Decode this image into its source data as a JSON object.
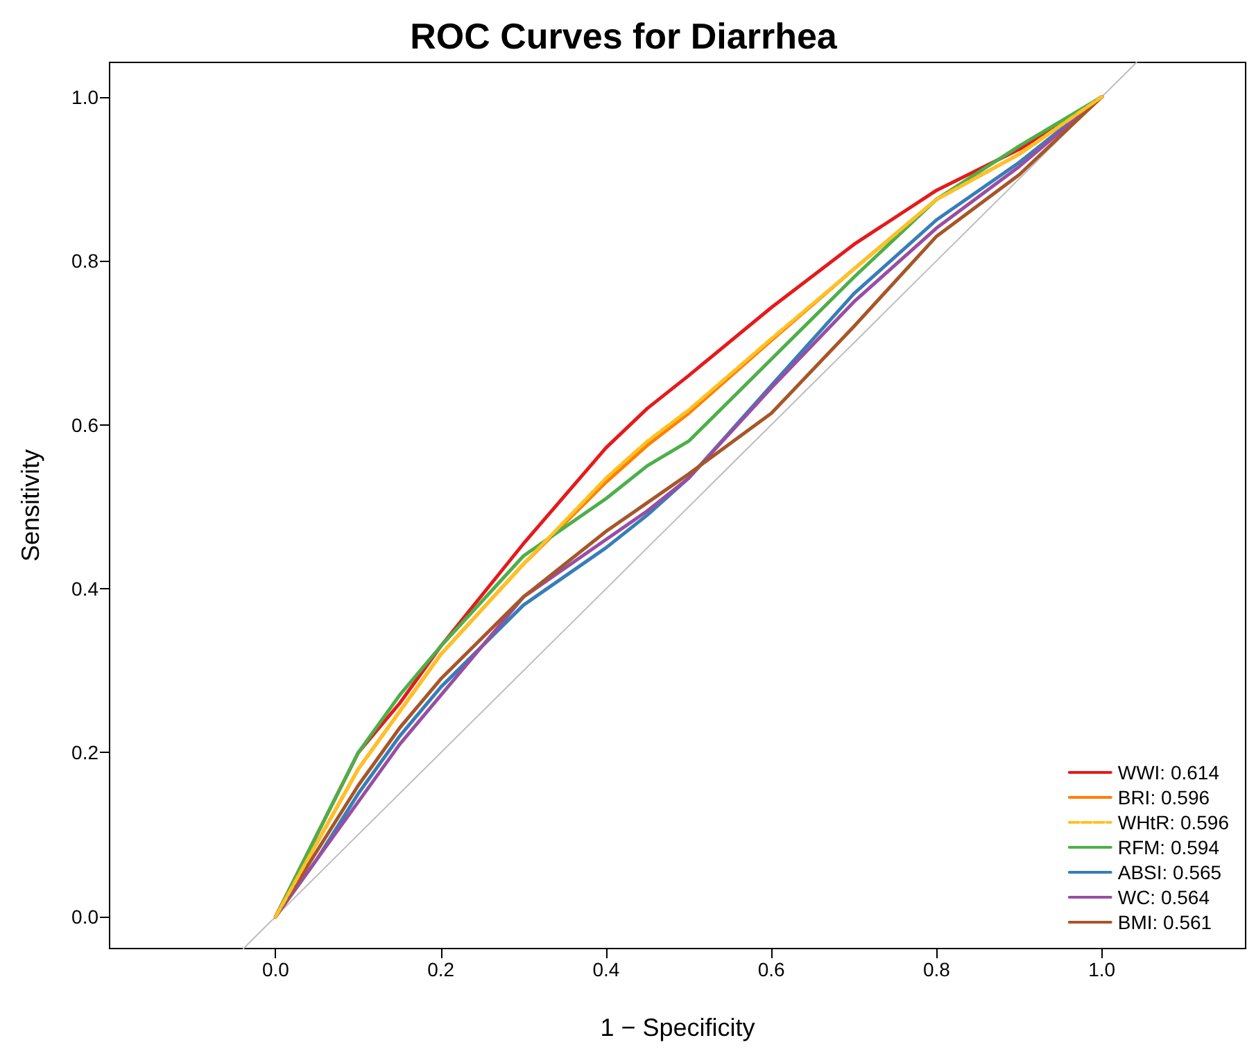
{
  "chart_data": {
    "type": "line",
    "title": "ROC Curves for Diarrhea",
    "xlabel": "1 − Specificity",
    "ylabel": "Sensitivity",
    "x": [
      0,
      0.05,
      0.1,
      0.15,
      0.2,
      0.3,
      0.4,
      0.45,
      0.5,
      0.6,
      0.7,
      0.8,
      0.9,
      1
    ],
    "series": [
      {
        "name": "WWI: 0.614",
        "color": "#e41a1c",
        "values": [
          0,
          0.1,
          0.2,
          0.26,
          0.33,
          0.455,
          0.572,
          0.62,
          0.66,
          0.743,
          0.82,
          0.886,
          0.936,
          1
        ]
      },
      {
        "name": "BRI: 0.596",
        "color": "#ff7f00",
        "values": [
          0,
          0.09,
          0.18,
          0.25,
          0.32,
          0.43,
          0.53,
          0.575,
          0.614,
          0.703,
          0.79,
          0.875,
          0.93,
          1
        ]
      },
      {
        "name": "WHtR: 0.596",
        "color": "#ffc125",
        "line_style": "dashed",
        "values": [
          0,
          0.09,
          0.18,
          0.25,
          0.32,
          0.43,
          0.535,
          0.58,
          0.618,
          0.705,
          0.79,
          0.875,
          0.93,
          1
        ]
      },
      {
        "name": "RFM: 0.594",
        "color": "#4daf4a",
        "values": [
          0,
          0.1,
          0.2,
          0.27,
          0.33,
          0.44,
          0.51,
          0.55,
          0.58,
          0.68,
          0.78,
          0.875,
          0.94,
          1
        ]
      },
      {
        "name": "ABSI: 0.565",
        "color": "#377eb8",
        "values": [
          0,
          0.07,
          0.15,
          0.22,
          0.28,
          0.38,
          0.45,
          0.49,
          0.535,
          0.648,
          0.76,
          0.85,
          0.92,
          1
        ]
      },
      {
        "name": "WC: 0.564",
        "color": "#984ea3",
        "values": [
          0,
          0.07,
          0.14,
          0.21,
          0.27,
          0.39,
          0.46,
          0.495,
          0.535,
          0.645,
          0.75,
          0.84,
          0.915,
          1
        ]
      },
      {
        "name": "BMI: 0.561",
        "color": "#a65628",
        "values": [
          0,
          0.08,
          0.16,
          0.23,
          0.29,
          0.39,
          0.47,
          0.505,
          0.54,
          0.614,
          0.72,
          0.83,
          0.905,
          1
        ]
      },
      {
        "type": "line",
        "color": "#bebebe",
        "x": [
          -0.039,
          1.042
        ],
        "values": [
          -0.039,
          1.042
        ]
      }
    ],
    "xlim": [
      -0.201,
      1.174
    ],
    "ylim": [
      -0.039,
      1.042
    ],
    "xticks": [
      {
        "value": 0,
        "label": "0.0"
      },
      0.2,
      0.4,
      0.6,
      0.8,
      {
        "value": 1,
        "label": "1.0"
      }
    ],
    "yticks": [
      {
        "value": 0,
        "label": "0.0"
      },
      0.2,
      0.4,
      0.6,
      0.8,
      {
        "value": 1,
        "label": "1.0"
      }
    ],
    "grid": false,
    "legend": "bottom right",
    "marker": "none",
    "line_style": "solid"
  }
}
